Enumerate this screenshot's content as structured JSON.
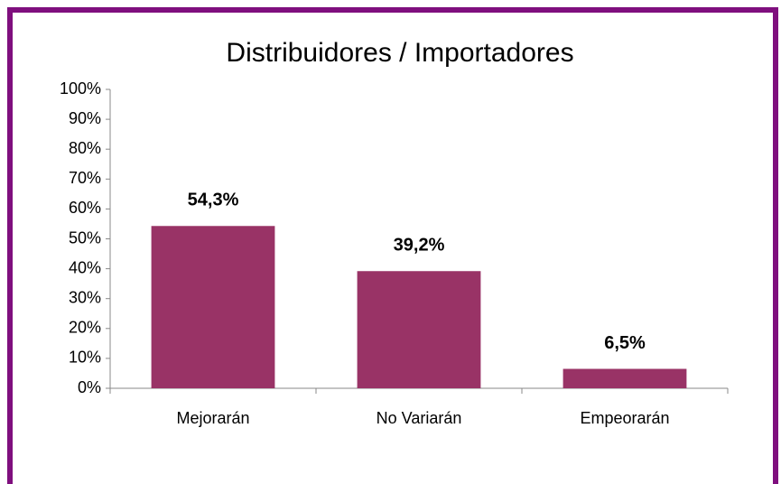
{
  "chart_data": {
    "type": "bar",
    "title": "Distribuidores / Importadores",
    "categories": [
      "Mejorarán",
      "No Variarán",
      "Empeorarán"
    ],
    "values": [
      54.3,
      39.2,
      6.5
    ],
    "value_labels": [
      "54,3%",
      "39,2%",
      "6,5%"
    ],
    "color": "#993366",
    "ylim": [
      0,
      100
    ],
    "yticks": [
      {
        "value": 0,
        "label": "0%"
      },
      {
        "value": 10,
        "label": "10%"
      },
      {
        "value": 20,
        "label": "20%"
      },
      {
        "value": 30,
        "label": "30%"
      },
      {
        "value": 40,
        "label": "40%"
      },
      {
        "value": 50,
        "label": "50%"
      },
      {
        "value": 60,
        "label": "60%"
      },
      {
        "value": 70,
        "label": "70%"
      },
      {
        "value": 80,
        "label": "80%"
      },
      {
        "value": 90,
        "label": "90%"
      },
      {
        "value": 100,
        "label": "100%"
      }
    ],
    "grid": false
  }
}
